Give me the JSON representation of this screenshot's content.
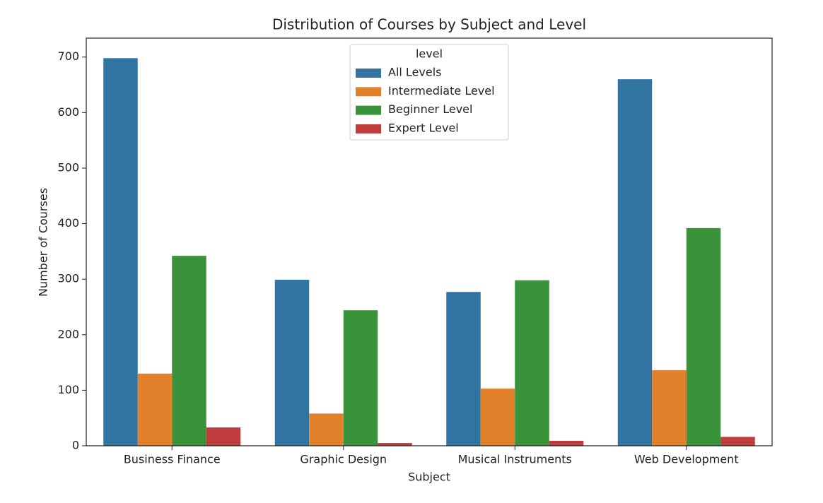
{
  "chart_data": {
    "type": "bar",
    "title": "Distribution of Courses by Subject and Level",
    "x_label": "Subject",
    "y_label": "Number of Courses",
    "categories": [
      "Business Finance",
      "Graphic Design",
      "Musical Instruments",
      "Web Development"
    ],
    "legend_title": "level",
    "legend_position": "upper center",
    "series": [
      {
        "name": "All Levels",
        "color": "#3274a1",
        "values": [
          698,
          299,
          277,
          660
        ]
      },
      {
        "name": "Intermediate Level",
        "color": "#e1812c",
        "values": [
          130,
          58,
          103,
          136
        ]
      },
      {
        "name": "Beginner Level",
        "color": "#3a923a",
        "values": [
          342,
          244,
          298,
          392
        ]
      },
      {
        "name": "Expert Level",
        "color": "#c03d3e",
        "values": [
          33,
          5,
          9,
          16
        ]
      }
    ],
    "ylim": [
      0,
      734
    ],
    "yticks": [
      0,
      100,
      200,
      300,
      400,
      500,
      600,
      700
    ],
    "grid": false
  }
}
